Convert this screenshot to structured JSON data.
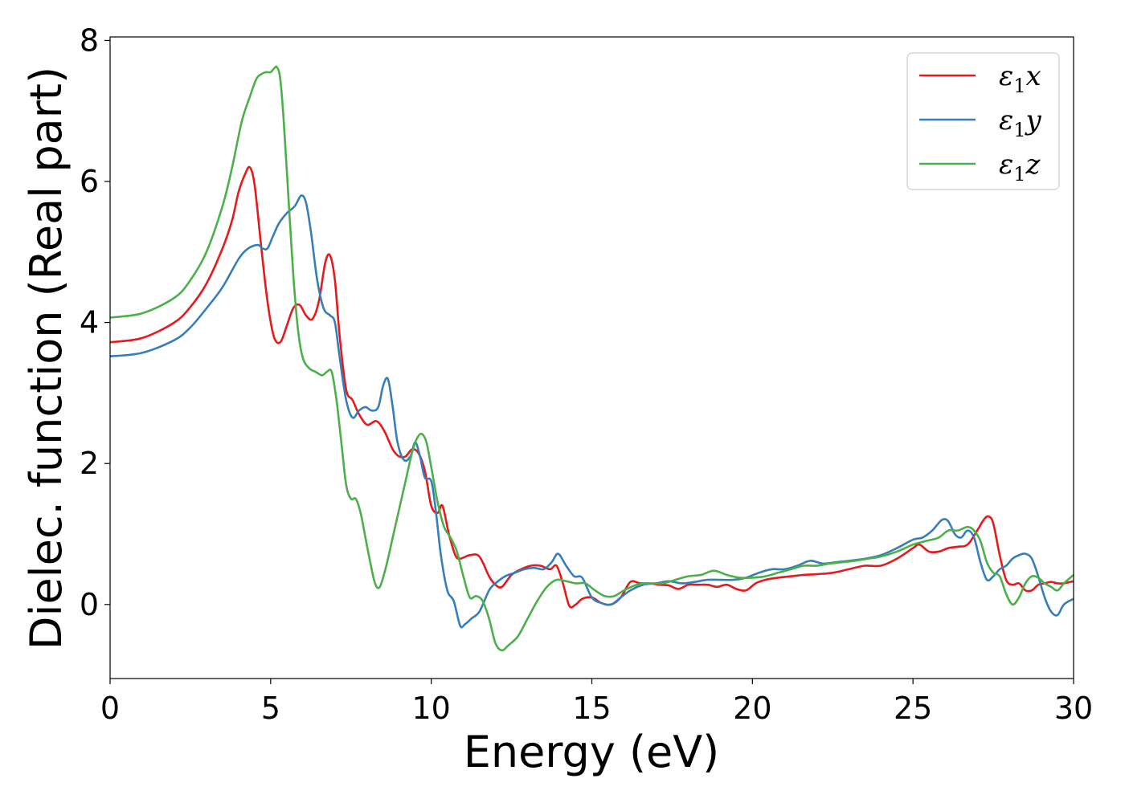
{
  "chart_data": {
    "type": "line",
    "title": "",
    "xlabel": "Energy (eV)",
    "ylabel": "Dielec. function (Real part)",
    "xlim": [
      0,
      30
    ],
    "ylim": [
      -1.05,
      8.05
    ],
    "xticks": [
      0,
      5,
      10,
      15,
      20,
      25,
      30
    ],
    "xtick_labels": [
      "0",
      "5",
      "10",
      "15",
      "20",
      "25",
      "30"
    ],
    "yticks": [
      0,
      2,
      4,
      6,
      8
    ],
    "ytick_labels": [
      "0",
      "2",
      "4",
      "6",
      "8"
    ],
    "grid": false,
    "legend_position": "top-right",
    "series": [
      {
        "name": "ε1x",
        "legend": {
          "main": "ε",
          "sub": "1",
          "axis": "x"
        },
        "color": "#e41a1c",
        "x": [
          0,
          1,
          2,
          2.5,
          3,
          3.5,
          3.8,
          4.0,
          4.2,
          4.35,
          4.5,
          4.7,
          4.9,
          5.1,
          5.3,
          5.5,
          5.7,
          5.9,
          6.1,
          6.3,
          6.5,
          6.7,
          6.85,
          7.0,
          7.15,
          7.35,
          7.55,
          7.75,
          8.0,
          8.3,
          8.55,
          8.8,
          9.0,
          9.2,
          9.4,
          9.6,
          9.8,
          10.0,
          10.2,
          10.35,
          10.55,
          10.75,
          10.9,
          11.2,
          11.5,
          11.8,
          12.0,
          12.2,
          12.5,
          12.8,
          13.1,
          13.4,
          13.7,
          13.9,
          14.1,
          14.3,
          14.5,
          14.7,
          15.0,
          15.3,
          15.6,
          15.9,
          16.2,
          16.5,
          16.8,
          17.1,
          17.4,
          17.7,
          18.0,
          18.3,
          18.6,
          18.9,
          19.2,
          19.5,
          19.8,
          20.1,
          20.4,
          20.8,
          21.2,
          21.6,
          22.0,
          22.5,
          23.0,
          23.5,
          24.0,
          24.5,
          25.0,
          25.2,
          25.5,
          25.8,
          26.1,
          26.4,
          26.7,
          27.0,
          27.2,
          27.35,
          27.5,
          27.7,
          27.9,
          28.1,
          28.3,
          28.5,
          28.7,
          28.9,
          29.1,
          29.3,
          29.5,
          29.7,
          30.0
        ],
        "y": [
          3.72,
          3.78,
          4.0,
          4.22,
          4.55,
          5.05,
          5.45,
          5.85,
          6.1,
          6.2,
          5.95,
          5.1,
          4.3,
          3.8,
          3.72,
          3.95,
          4.2,
          4.25,
          4.1,
          4.05,
          4.3,
          4.85,
          4.95,
          4.6,
          3.8,
          3.05,
          2.9,
          2.7,
          2.55,
          2.6,
          2.45,
          2.2,
          2.1,
          2.1,
          2.2,
          2.15,
          1.9,
          1.4,
          1.3,
          1.4,
          1.0,
          0.7,
          0.65,
          0.7,
          0.68,
          0.4,
          0.28,
          0.25,
          0.42,
          0.5,
          0.55,
          0.55,
          0.5,
          0.55,
          0.3,
          -0.02,
          0.0,
          0.08,
          0.1,
          0.02,
          0.0,
          0.1,
          0.32,
          0.3,
          0.3,
          0.28,
          0.27,
          0.22,
          0.28,
          0.28,
          0.28,
          0.25,
          0.28,
          0.22,
          0.2,
          0.3,
          0.35,
          0.38,
          0.4,
          0.42,
          0.43,
          0.45,
          0.5,
          0.55,
          0.55,
          0.65,
          0.8,
          0.85,
          0.75,
          0.75,
          0.8,
          0.82,
          0.85,
          1.05,
          1.2,
          1.25,
          1.15,
          0.7,
          0.35,
          0.28,
          0.3,
          0.2,
          0.2,
          0.28,
          0.3,
          0.32,
          0.3,
          0.3,
          0.33
        ]
      },
      {
        "name": "ε1y",
        "legend": {
          "main": "ε",
          "sub": "1",
          "axis": "y"
        },
        "color": "#377eb8",
        "x": [
          0,
          1,
          2,
          2.5,
          3,
          3.5,
          4.0,
          4.3,
          4.6,
          4.75,
          4.9,
          5.05,
          5.25,
          5.5,
          5.75,
          5.95,
          6.1,
          6.25,
          6.45,
          6.65,
          6.85,
          7.0,
          7.15,
          7.35,
          7.55,
          7.75,
          7.95,
          8.15,
          8.35,
          8.5,
          8.65,
          8.8,
          8.95,
          9.15,
          9.35,
          9.5,
          9.65,
          9.8,
          10.0,
          10.15,
          10.3,
          10.5,
          10.7,
          10.9,
          11.05,
          11.25,
          11.5,
          11.8,
          12.0,
          12.3,
          12.6,
          12.9,
          13.2,
          13.5,
          13.75,
          13.95,
          14.2,
          14.45,
          14.7,
          15.0,
          15.3,
          15.6,
          15.9,
          16.2,
          16.6,
          17.0,
          17.4,
          17.8,
          18.2,
          18.6,
          19.0,
          19.4,
          19.8,
          20.2,
          20.6,
          21.0,
          21.4,
          21.8,
          22.2,
          22.6,
          23.0,
          23.5,
          24.0,
          24.5,
          25.0,
          25.3,
          25.6,
          25.9,
          26.1,
          26.3,
          26.5,
          26.7,
          26.9,
          27.1,
          27.3,
          27.5,
          27.7,
          27.9,
          28.1,
          28.3,
          28.5,
          28.7,
          28.9,
          29.1,
          29.3,
          29.5,
          29.7,
          30.0
        ],
        "y": [
          3.52,
          3.57,
          3.75,
          3.93,
          4.2,
          4.5,
          4.9,
          5.05,
          5.1,
          5.05,
          5.05,
          5.2,
          5.4,
          5.55,
          5.65,
          5.8,
          5.7,
          5.3,
          4.6,
          4.2,
          4.1,
          4.0,
          3.5,
          2.9,
          2.65,
          2.75,
          2.8,
          2.75,
          2.8,
          3.1,
          3.2,
          2.8,
          2.3,
          2.05,
          2.1,
          2.3,
          2.1,
          1.8,
          1.75,
          1.3,
          0.7,
          0.2,
          0.05,
          -0.3,
          -0.28,
          -0.2,
          -0.1,
          0.2,
          0.3,
          0.4,
          0.45,
          0.5,
          0.52,
          0.5,
          0.6,
          0.72,
          0.55,
          0.4,
          0.38,
          0.1,
          0.02,
          0.0,
          0.1,
          0.2,
          0.28,
          0.3,
          0.33,
          0.3,
          0.32,
          0.35,
          0.35,
          0.35,
          0.38,
          0.45,
          0.5,
          0.5,
          0.55,
          0.62,
          0.58,
          0.6,
          0.62,
          0.65,
          0.7,
          0.8,
          0.92,
          0.95,
          1.05,
          1.2,
          1.18,
          1.0,
          0.95,
          1.05,
          0.95,
          0.6,
          0.35,
          0.4,
          0.5,
          0.55,
          0.65,
          0.7,
          0.72,
          0.65,
          0.4,
          0.1,
          -0.1,
          -0.15,
          0.0,
          0.08
        ]
      },
      {
        "name": "ε1z",
        "legend": {
          "main": "ε",
          "sub": "1",
          "axis": "z"
        },
        "color": "#4daf4a",
        "x": [
          0,
          1,
          2,
          2.5,
          3,
          3.5,
          3.8,
          4.1,
          4.35,
          4.55,
          4.7,
          4.85,
          5.0,
          5.1,
          5.2,
          5.3,
          5.4,
          5.55,
          5.7,
          5.85,
          6.0,
          6.2,
          6.4,
          6.6,
          6.75,
          6.9,
          7.05,
          7.2,
          7.35,
          7.5,
          7.65,
          7.8,
          7.95,
          8.1,
          8.25,
          8.4,
          8.6,
          8.8,
          9.0,
          9.2,
          9.4,
          9.55,
          9.7,
          9.85,
          10.0,
          10.2,
          10.4,
          10.6,
          10.8,
          11.0,
          11.2,
          11.4,
          11.6,
          11.8,
          12.0,
          12.2,
          12.4,
          12.7,
          13.0,
          13.3,
          13.6,
          13.9,
          14.2,
          14.5,
          14.8,
          15.1,
          15.4,
          15.7,
          16.0,
          16.4,
          16.8,
          17.2,
          17.6,
          18.0,
          18.4,
          18.8,
          19.2,
          19.6,
          20.0,
          20.4,
          20.8,
          21.2,
          21.6,
          22.0,
          22.4,
          22.8,
          23.2,
          23.6,
          24.0,
          24.5,
          25.0,
          25.4,
          25.8,
          26.1,
          26.4,
          26.7,
          26.9,
          27.1,
          27.3,
          27.5,
          27.7,
          27.9,
          28.1,
          28.3,
          28.5,
          28.7,
          28.9,
          29.1,
          29.3,
          29.5,
          29.7,
          30.0
        ],
        "y": [
          4.07,
          4.13,
          4.35,
          4.6,
          5.0,
          5.65,
          6.2,
          6.85,
          7.2,
          7.45,
          7.52,
          7.55,
          7.55,
          7.6,
          7.62,
          7.45,
          6.9,
          5.8,
          4.7,
          3.9,
          3.5,
          3.35,
          3.3,
          3.25,
          3.3,
          3.3,
          2.9,
          2.3,
          1.7,
          1.5,
          1.5,
          1.3,
          0.95,
          0.6,
          0.3,
          0.25,
          0.55,
          0.95,
          1.35,
          1.75,
          2.15,
          2.35,
          2.42,
          2.3,
          1.95,
          1.45,
          1.1,
          0.95,
          0.75,
          0.4,
          0.1,
          0.12,
          0.05,
          -0.2,
          -0.55,
          -0.65,
          -0.58,
          -0.45,
          -0.2,
          0.05,
          0.25,
          0.35,
          0.33,
          0.3,
          0.3,
          0.2,
          0.12,
          0.12,
          0.2,
          0.28,
          0.3,
          0.3,
          0.35,
          0.4,
          0.42,
          0.48,
          0.42,
          0.38,
          0.38,
          0.4,
          0.45,
          0.5,
          0.55,
          0.55,
          0.58,
          0.6,
          0.62,
          0.65,
          0.68,
          0.75,
          0.85,
          0.9,
          0.95,
          1.05,
          1.05,
          1.1,
          1.05,
          0.9,
          0.6,
          0.45,
          0.4,
          0.15,
          0.0,
          0.1,
          0.3,
          0.4,
          0.38,
          0.3,
          0.25,
          0.2,
          0.3,
          0.42
        ]
      }
    ]
  }
}
